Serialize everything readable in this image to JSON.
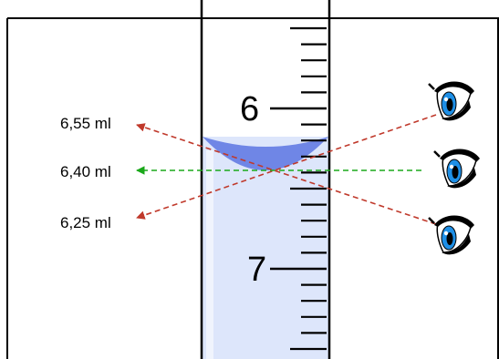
{
  "scale": {
    "major_labels": [
      "6",
      "7"
    ]
  },
  "readings": [
    {
      "label": "6,55 ml",
      "color": "#c0392b",
      "line_style": "dashed"
    },
    {
      "label": "6,40 ml",
      "color": "#1aa81a",
      "line_style": "dashed"
    },
    {
      "label": "6,25 ml",
      "color": "#c0392b",
      "line_style": "dashed"
    }
  ],
  "colors": {
    "liquid": "#dde6fb",
    "meniscus": "#6f86e6",
    "iris": "#1e8fe6",
    "outline": "#000000"
  },
  "icons": [
    "eye-icon-top",
    "eye-icon-middle",
    "eye-icon-bottom"
  ]
}
